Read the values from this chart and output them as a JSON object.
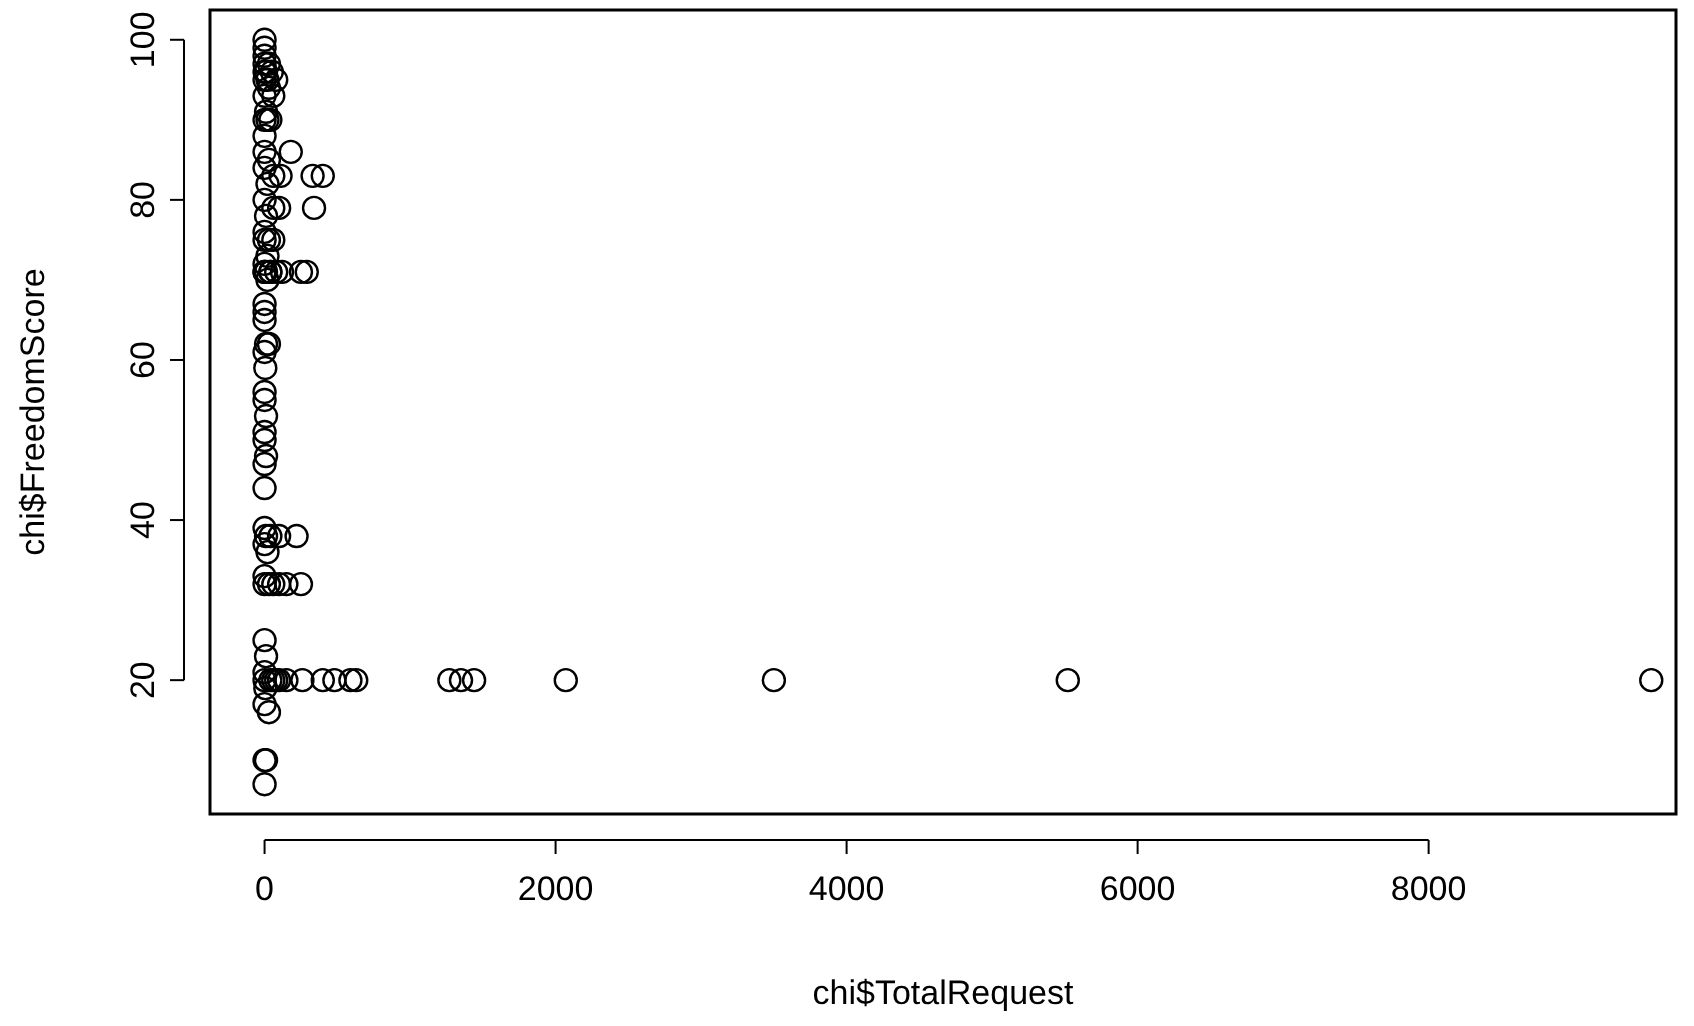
{
  "chart_data": {
    "type": "scatter",
    "xlabel": "chi$TotalRequest",
    "ylabel": "chi$FreedomScore",
    "x": [
      0,
      0,
      10,
      30,
      0,
      5,
      0,
      40,
      80,
      150,
      60,
      100,
      260,
      400,
      480,
      590,
      630,
      1270,
      1350,
      1440,
      2070,
      3500,
      5520,
      9530,
      0,
      10,
      0,
      0,
      30,
      60,
      100,
      150,
      250,
      0,
      20,
      0,
      10,
      40,
      100,
      220,
      0,
      0,
      0,
      10,
      0,
      0,
      10,
      0,
      0,
      5,
      0,
      10,
      30,
      0,
      0,
      0,
      20,
      40,
      0,
      10,
      0,
      40,
      80,
      120,
      250,
      290,
      0,
      20,
      0,
      30,
      60,
      0,
      10,
      60,
      100,
      340,
      0,
      20,
      60,
      110,
      330,
      400,
      0,
      30,
      0,
      180,
      0,
      20,
      40,
      0,
      10,
      60,
      0,
      30,
      80,
      0,
      20,
      50,
      0,
      10,
      0,
      30,
      0,
      0,
      0
    ],
    "values": [
      7,
      10,
      10,
      16,
      17,
      19,
      20,
      20,
      20,
      20,
      20,
      20,
      20,
      20,
      20,
      20,
      20,
      20,
      20,
      20,
      20,
      20,
      20,
      20,
      21,
      23,
      25,
      32,
      32,
      32,
      32,
      32,
      32,
      33,
      36,
      37,
      38,
      38,
      38,
      38,
      39,
      44,
      47,
      48,
      50,
      51,
      53,
      55,
      56,
      59,
      61,
      62,
      62,
      65,
      66,
      67,
      70,
      71,
      71,
      71,
      71,
      71,
      71,
      71,
      71,
      71,
      72,
      73,
      75,
      75,
      75,
      76,
      78,
      79,
      79,
      79,
      80,
      82,
      83,
      83,
      83,
      83,
      84,
      85,
      86,
      86,
      88,
      90,
      90,
      90,
      91,
      93,
      93,
      94,
      95,
      95,
      95,
      96,
      96,
      96,
      97,
      97,
      98,
      99,
      100
    ],
    "color": "#000000",
    "marker": "circle",
    "xlim": [
      -375,
      9700
    ],
    "ylim": [
      3.28,
      103.72
    ],
    "xticks": [
      0,
      2000,
      4000,
      6000,
      8000
    ],
    "yticks": [
      20,
      40,
      60,
      80,
      100
    ],
    "grid": false
  }
}
